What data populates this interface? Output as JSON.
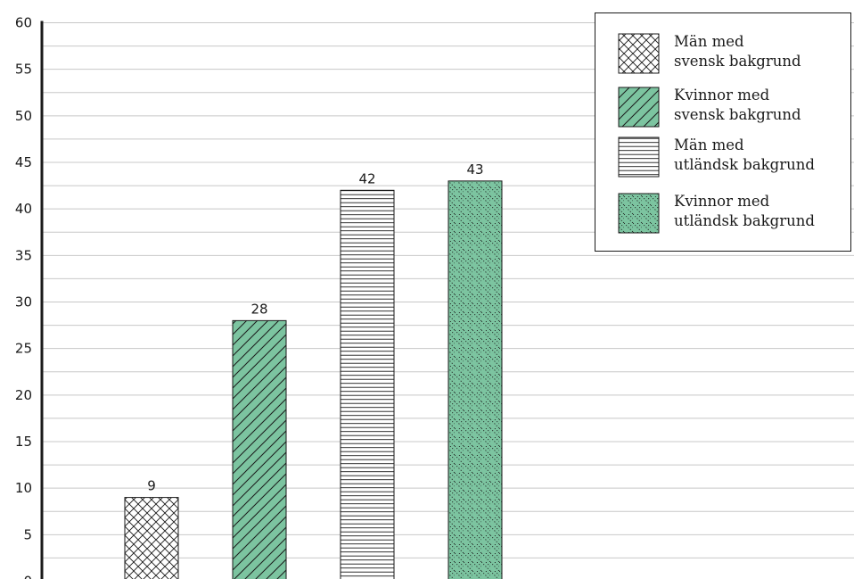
{
  "chart_data": {
    "type": "bar",
    "categories": [
      "Män med svensk bakgrund",
      "Kvinnor med svensk bakgrund",
      "Män med utländsk bakgrund",
      "Kvinnor med utländsk bakgrund"
    ],
    "values": [
      9,
      28,
      42,
      43
    ],
    "bar_value_labels": [
      "9",
      "28",
      "42",
      "43"
    ],
    "title": "",
    "xlabel": "",
    "ylabel": "",
    "ylim": [
      0,
      60
    ],
    "y_ticks": [
      0,
      5,
      10,
      15,
      20,
      25,
      30,
      35,
      40,
      45,
      50,
      55,
      60
    ],
    "grid": "horizontal",
    "legend_position": "top-right",
    "legend": [
      {
        "lines": [
          "Män med",
          "svensk bakgrund"
        ],
        "pattern": "crosshatch",
        "fill": "#ffffff"
      },
      {
        "lines": [
          "Kvinnor med",
          "svensk bakgrund"
        ],
        "pattern": "diagonal",
        "fill": "#7cc4a0"
      },
      {
        "lines": [
          "Män med",
          "utländsk bakgrund"
        ],
        "pattern": "horizontal",
        "fill": "#ffffff"
      },
      {
        "lines": [
          "Kvinnor med",
          "utländsk bakgrund"
        ],
        "pattern": "dotted-diagonal",
        "fill": "#7cc4a0"
      }
    ],
    "colors": {
      "green": "#7cc4a0",
      "white": "#ffffff",
      "ink": "#1a1a1a",
      "grid": "#c8c8c8"
    }
  }
}
